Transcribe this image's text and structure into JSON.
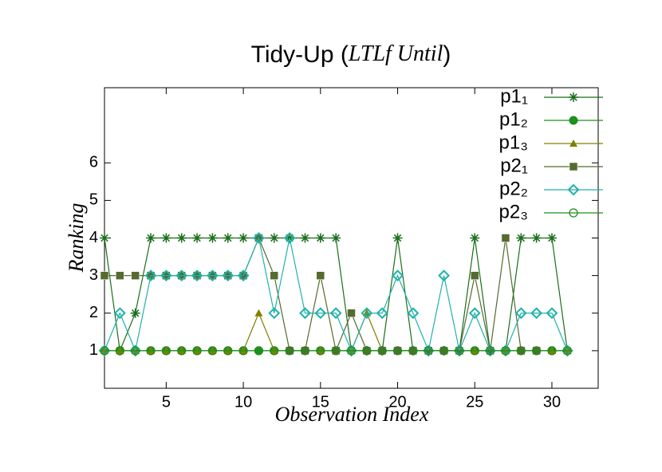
{
  "chart_data": {
    "type": "line",
    "title": [
      "Tidy-Up (",
      "LTLf Until",
      ")"
    ],
    "x_label": "Observation Index",
    "y_label": "Ranking",
    "x": [
      1,
      2,
      3,
      4,
      5,
      6,
      7,
      8,
      9,
      10,
      11,
      12,
      13,
      14,
      15,
      16,
      17,
      18,
      19,
      20,
      21,
      22,
      23,
      24,
      25,
      26,
      27,
      28,
      29,
      30,
      31
    ],
    "xlim": [
      1,
      33
    ],
    "xticks": [
      5,
      10,
      15,
      20,
      25,
      30
    ],
    "ylim": [
      0,
      8
    ],
    "yticks": [
      1,
      2,
      3,
      4,
      5,
      6
    ],
    "legend": "top-right",
    "series": [
      {
        "name": "p1₁",
        "color": "#1a6e1a",
        "marker": "star",
        "values": [
          4,
          1,
          2,
          4,
          4,
          4,
          4,
          4,
          4,
          4,
          4,
          4,
          4,
          4,
          4,
          4,
          1,
          1,
          1,
          4,
          1,
          1,
          1,
          1,
          4,
          1,
          1,
          4,
          4,
          4,
          1
        ]
      },
      {
        "name": "p1₂",
        "color": "#1f8f1f",
        "marker": "dot-circle",
        "values": [
          1,
          1,
          1,
          1,
          1,
          1,
          1,
          1,
          1,
          1,
          1,
          1,
          1,
          1,
          1,
          1,
          1,
          1,
          1,
          1,
          1,
          1,
          1,
          1,
          1,
          1,
          1,
          1,
          1,
          1,
          1
        ]
      },
      {
        "name": "p1₃",
        "color": "#808000",
        "marker": "triangle",
        "values": [
          1,
          1,
          1,
          1,
          1,
          1,
          1,
          1,
          1,
          1,
          2,
          1,
          1,
          1,
          1,
          1,
          1,
          2,
          1,
          1,
          1,
          1,
          1,
          1,
          1,
          1,
          1,
          1,
          1,
          1,
          1
        ]
      },
      {
        "name": "p2₁",
        "color": "#556b2f",
        "marker": "square",
        "values": [
          3,
          3,
          3,
          3,
          3,
          3,
          3,
          3,
          3,
          3,
          4,
          3,
          1,
          1,
          3,
          1,
          2,
          1,
          1,
          1,
          1,
          1,
          1,
          1,
          3,
          1,
          4,
          1,
          1,
          null,
          null
        ]
      },
      {
        "name": "p2₂",
        "color": "#20b2aa",
        "marker": "diamond",
        "values": [
          1,
          2,
          1,
          3,
          3,
          3,
          3,
          3,
          3,
          3,
          4,
          2,
          4,
          2,
          2,
          2,
          1,
          2,
          2,
          3,
          2,
          1,
          3,
          1,
          2,
          1,
          1,
          2,
          2,
          2,
          1
        ]
      },
      {
        "name": "p2₃",
        "color": "#1f8f1f",
        "marker": "open-circle",
        "values": [
          1,
          1,
          1,
          1,
          1,
          1,
          1,
          1,
          1,
          1,
          1,
          1,
          1,
          1,
          1,
          1,
          1,
          1,
          1,
          1,
          1,
          1,
          1,
          1,
          1,
          1,
          1,
          1,
          1,
          1,
          1
        ]
      }
    ]
  }
}
